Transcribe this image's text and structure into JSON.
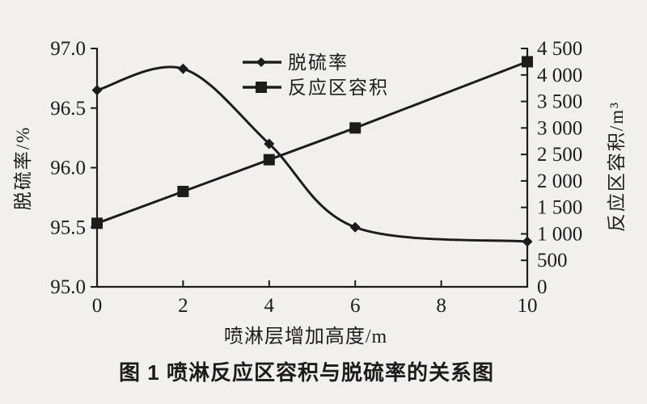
{
  "colors": {
    "background": "#f1f0ec",
    "ink": "#1d1c1a"
  },
  "caption": "图 1  喷淋反应区容积与脱硫率的关系图",
  "chart_data": {
    "type": "line",
    "grid": false,
    "x": [
      0,
      2,
      4,
      6,
      10
    ],
    "series": [
      {
        "name": "脱硫率",
        "axis": "left",
        "marker": "diamond",
        "smooth": true,
        "values": [
          96.65,
          96.83,
          96.2,
          95.5,
          95.38
        ]
      },
      {
        "name": "反应区容积",
        "axis": "right",
        "marker": "square",
        "smooth": false,
        "values": [
          1200,
          1800,
          2400,
          3000,
          4250
        ]
      }
    ],
    "x_axis": {
      "label": "喷淋层增加高度/m",
      "min": 0,
      "max": 10,
      "ticks": [
        "0",
        "2",
        "4",
        "6",
        "8",
        "10"
      ]
    },
    "left_axis": {
      "label": "脱硫率/%",
      "min": 95.0,
      "max": 97.0,
      "tick_step": 0.5,
      "ticks": [
        "95.0",
        "95.5",
        "96.0",
        "96.5",
        "97.0"
      ]
    },
    "right_axis": {
      "label": "反应区容积/m³",
      "min": 0,
      "max": 4500,
      "tick_step": 500,
      "ticks": [
        "0",
        "500",
        "1 000",
        "1 500",
        "2 000",
        "2 500",
        "3 000",
        "3 500",
        "4 000",
        "4 500"
      ]
    },
    "legend": {
      "position": "inside-top",
      "entries": [
        "脱硫率",
        "反应区容积"
      ]
    }
  }
}
